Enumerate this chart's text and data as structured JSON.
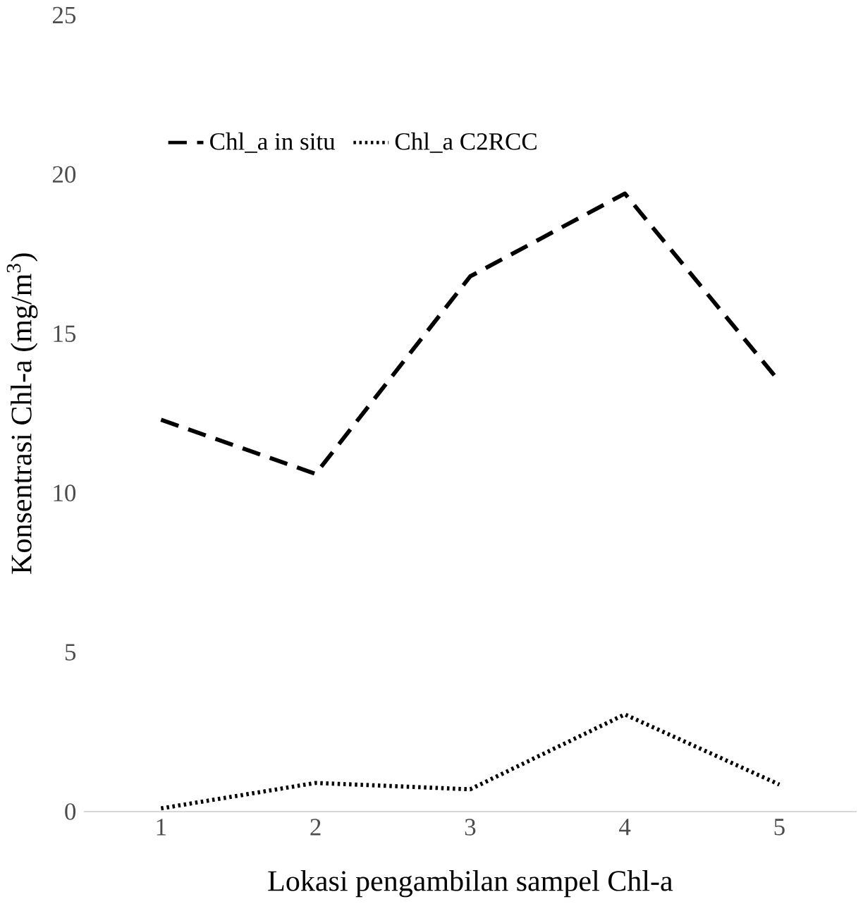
{
  "chart_data": {
    "type": "line",
    "xlabel": "Lokasi pengambilan sampel Chl-a",
    "ylabel": "Konsentrasi Chl-a (mg/m$^{3}$)",
    "categories": [
      "1",
      "2",
      "3",
      "4",
      "5"
    ],
    "series": [
      {
        "name": "Chl_a in situ",
        "color": "#000000",
        "line_style": "dashed",
        "values": [
          12.3,
          10.6,
          16.8,
          19.4,
          13.5
        ]
      },
      {
        "name": "Chl_a C2RCC",
        "color": "#000000",
        "line_style": "dotted",
        "values": [
          0.1,
          0.9,
          0.7,
          3.05,
          0.85
        ]
      }
    ],
    "ylim": [
      0,
      25
    ],
    "yticks": [
      0,
      5,
      10,
      15,
      20,
      25
    ],
    "grid": false,
    "legend": "top",
    "marker": "none"
  }
}
